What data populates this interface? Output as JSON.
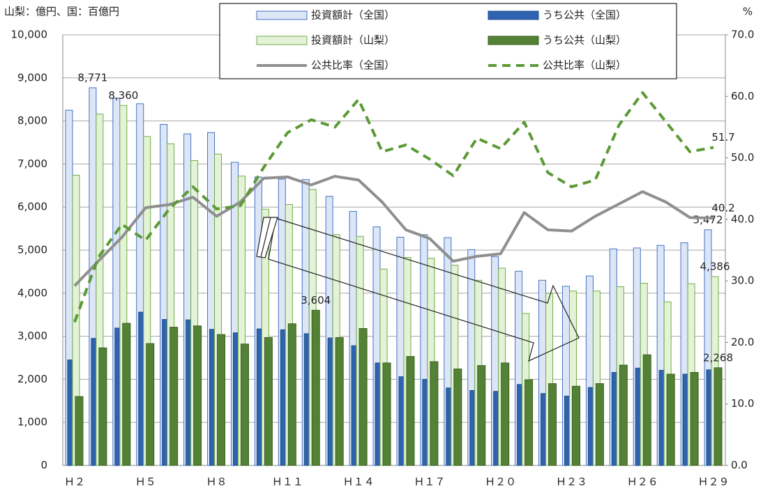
{
  "chart_data": {
    "type": "bar",
    "y_label": "山梨：億円、国：百億円",
    "y2_label": "%",
    "categories": [
      "Ｈ２",
      null,
      null,
      "Ｈ５",
      null,
      null,
      "Ｈ８",
      null,
      null,
      "Ｈ１１",
      null,
      null,
      "Ｈ１４",
      null,
      null,
      "Ｈ１７",
      null,
      null,
      "Ｈ２０",
      null,
      null,
      "Ｈ２３",
      null,
      null,
      "Ｈ２６",
      null,
      null,
      "Ｈ２９"
    ],
    "ylim": [
      0,
      10000
    ],
    "yticks": [
      0,
      {
        "value": 1000,
        "label": "1,000"
      },
      {
        "value": 2000,
        "label": "2,000"
      },
      {
        "value": 3000,
        "label": "3,000"
      },
      {
        "value": 4000,
        "label": "4,000"
      },
      {
        "value": 5000,
        "label": "5,000"
      },
      {
        "value": 6000,
        "label": "6,000"
      },
      {
        "value": 7000,
        "label": "7,000"
      },
      {
        "value": 8000,
        "label": "8,000"
      },
      {
        "value": 9000,
        "label": "9,000"
      },
      {
        "value": 10000,
        "label": "10,000"
      }
    ],
    "y2lim": [
      0,
      70
    ],
    "y2ticks": [
      {
        "value": 0,
        "label": "0.0"
      },
      {
        "value": 10,
        "label": "10.0"
      },
      {
        "value": 20,
        "label": "20.0"
      },
      {
        "value": 30,
        "label": "30.0"
      },
      {
        "value": 40,
        "label": "40.0"
      },
      {
        "value": 50,
        "label": "50.0"
      },
      {
        "value": 60,
        "label": "60.0"
      },
      {
        "value": 70,
        "label": "70.0"
      }
    ],
    "grid": true,
    "series": [
      {
        "name": "投資額計（全国）",
        "type": "bar",
        "color": "#dce6f7",
        "edge": "#4472c4",
        "values": [
          8250,
          8771,
          8530,
          8400,
          7920,
          7700,
          7730,
          7040,
          6700,
          6650,
          6640,
          6250,
          5900,
          5540,
          5300,
          5360,
          5290,
          5010,
          4850,
          4510,
          4300,
          4160,
          4400,
          5030,
          5050,
          5110,
          5170,
          5472
        ],
        "value_labels": [
          null,
          "8,771",
          null,
          null,
          null,
          null,
          null,
          null,
          null,
          null,
          null,
          null,
          null,
          null,
          null,
          null,
          null,
          null,
          null,
          null,
          null,
          null,
          null,
          null,
          null,
          null,
          null,
          "5,472"
        ]
      },
      {
        "name": "うち公共（全国）",
        "type": "bar",
        "color": "#2f63b0",
        "edge": "#1f4e8c",
        "values": [
          2450,
          2950,
          3190,
          3560,
          3390,
          3380,
          3160,
          3080,
          3170,
          3150,
          3060,
          2960,
          2780,
          2380,
          2060,
          2000,
          1800,
          1740,
          1720,
          1880,
          1670,
          1610,
          1810,
          2160,
          2260,
          2210,
          2120,
          2220
        ]
      },
      {
        "name": "投資額計（山梨）",
        "type": "bar",
        "color": "#e4f2d8",
        "edge": "#70ad47",
        "values": [
          6740,
          8160,
          8360,
          7640,
          7470,
          7080,
          7230,
          6720,
          5950,
          6060,
          6410,
          5360,
          5320,
          4560,
          4830,
          4810,
          4650,
          4300,
          4580,
          3530,
          4000,
          4050,
          4050,
          4150,
          4230,
          3800,
          4220,
          4386
        ],
        "value_labels": [
          null,
          null,
          "8,360",
          null,
          null,
          null,
          null,
          null,
          null,
          null,
          null,
          null,
          null,
          null,
          null,
          null,
          null,
          null,
          null,
          null,
          null,
          null,
          null,
          null,
          null,
          null,
          null,
          "4,386"
        ]
      },
      {
        "name": "うち公共（山梨）",
        "type": "bar",
        "color": "#548235",
        "edge": "#3b5e25",
        "values": [
          1600,
          2730,
          3300,
          2830,
          3210,
          3240,
          3040,
          2820,
          2970,
          3290,
          3604,
          2970,
          3180,
          2380,
          2530,
          2410,
          2240,
          2320,
          2380,
          1990,
          1900,
          1840,
          1900,
          2330,
          2570,
          2120,
          2160,
          2268
        ],
        "value_labels": [
          null,
          null,
          null,
          null,
          null,
          null,
          null,
          null,
          null,
          null,
          "3,604",
          null,
          null,
          null,
          null,
          null,
          null,
          null,
          null,
          null,
          null,
          null,
          null,
          null,
          null,
          null,
          null,
          "2,268"
        ]
      },
      {
        "name": "公共比率（全国）",
        "type": "line",
        "axis": "y2",
        "color": "#8f8f8f",
        "dash": false,
        "values": [
          29.2,
          33.2,
          37.1,
          41.9,
          42.4,
          43.6,
          40.5,
          42.8,
          46.7,
          46.9,
          45.6,
          47.0,
          46.4,
          42.8,
          38.3,
          36.9,
          33.2,
          34.0,
          34.4,
          41.1,
          38.3,
          38.1,
          40.5,
          42.5,
          44.5,
          42.8,
          40.3,
          40.2
        ],
        "value_labels": [
          null,
          null,
          null,
          null,
          null,
          null,
          null,
          null,
          null,
          null,
          null,
          null,
          null,
          null,
          null,
          null,
          null,
          null,
          null,
          null,
          null,
          null,
          null,
          null,
          null,
          null,
          null,
          "40.2"
        ]
      },
      {
        "name": "公共比率（山梨）",
        "type": "line",
        "axis": "y2",
        "color": "#5b9a35",
        "dash": true,
        "values": [
          23.3,
          33.8,
          39.2,
          36.6,
          41.7,
          45.3,
          41.7,
          42.2,
          48.5,
          54.1,
          56.2,
          55.0,
          59.5,
          51.0,
          52.1,
          49.8,
          47.1,
          53.2,
          51.5,
          55.8,
          47.6,
          45.3,
          46.4,
          55.3,
          60.6,
          55.8,
          51.0,
          51.7
        ],
        "value_labels": [
          null,
          null,
          null,
          null,
          null,
          null,
          null,
          null,
          null,
          null,
          null,
          null,
          null,
          null,
          null,
          null,
          null,
          null,
          null,
          null,
          null,
          null,
          null,
          null,
          null,
          null,
          null,
          "51.7"
        ]
      }
    ]
  }
}
